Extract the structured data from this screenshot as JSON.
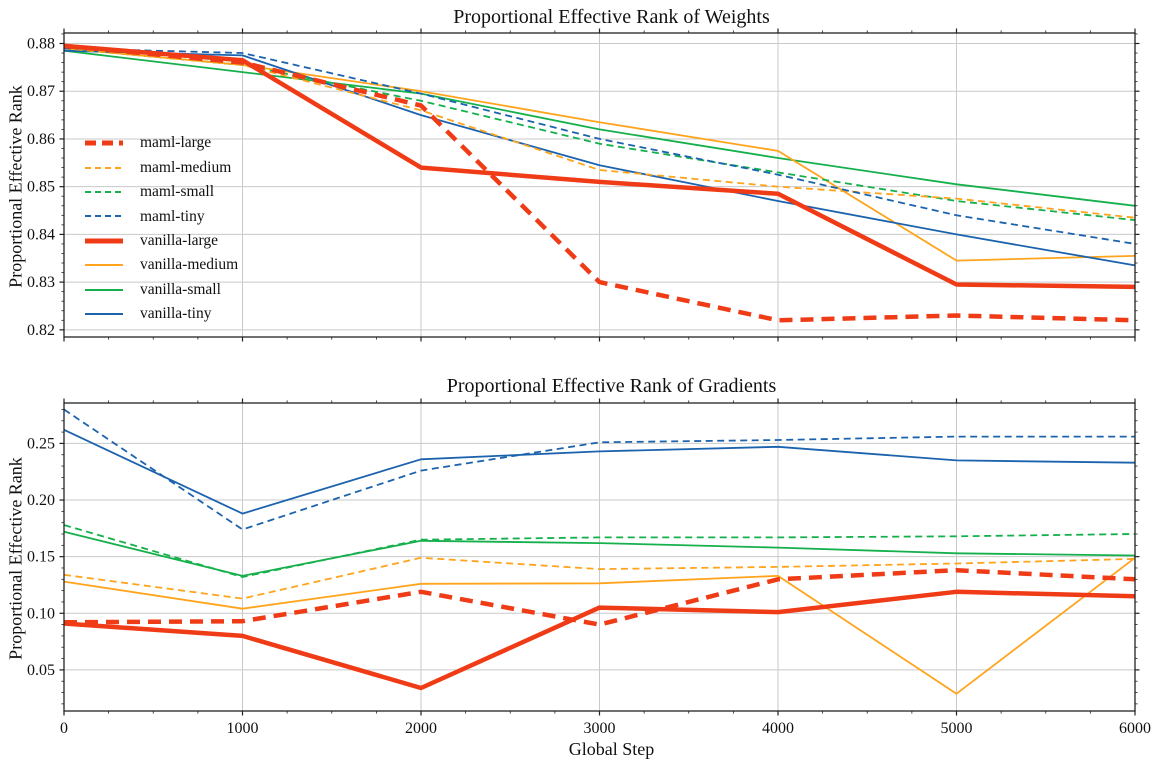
{
  "figure": {
    "background": "#ffffff"
  },
  "palette": {
    "red": "#f03b17",
    "orange": "#ffa41c",
    "green": "#15b04c",
    "blue": "#1c63ae",
    "grid": "#c9c9c9",
    "spine": "#222222",
    "text": "#111111"
  },
  "legend": {
    "items": [
      "maml-large",
      "maml-medium",
      "maml-small",
      "maml-tiny",
      "vanilla-large",
      "vanilla-medium",
      "vanilla-small",
      "vanilla-tiny"
    ]
  },
  "chart_data": [
    {
      "type": "line",
      "title": "Proportional Effective Rank of Weights",
      "xlabel": "",
      "ylabel": "Proportional Effective Rank",
      "x": [
        0,
        1000,
        2000,
        3000,
        4000,
        5000,
        6000
      ],
      "xlim": [
        0,
        6000
      ],
      "ylim": [
        0.8185,
        0.8822
      ],
      "xticks": [
        0,
        1000,
        2000,
        3000,
        4000,
        5000,
        6000
      ],
      "xtick_labels": [],
      "yticks": [
        0.82,
        0.83,
        0.84,
        0.85,
        0.86,
        0.87,
        0.88
      ],
      "ytick_labels": [
        "0.82",
        "0.83",
        "0.84",
        "0.85",
        "0.86",
        "0.87",
        "0.88"
      ],
      "xminor_step": 250,
      "yminor_step": 0.002,
      "grid": true,
      "legend_position": "upper-left-inside",
      "series": [
        {
          "name": "maml-large",
          "color": "#f03b17",
          "style": "dashed",
          "width": 4.5,
          "values": [
            0.8795,
            0.876,
            0.867,
            0.83,
            0.822,
            0.823,
            0.822
          ]
        },
        {
          "name": "maml-medium",
          "color": "#ffa41c",
          "style": "dashed",
          "width": 1.8,
          "values": [
            0.879,
            0.8755,
            0.866,
            0.8535,
            0.85,
            0.8475,
            0.8435
          ]
        },
        {
          "name": "maml-small",
          "color": "#15b04c",
          "style": "dashed",
          "width": 1.8,
          "values": [
            0.879,
            0.8755,
            0.868,
            0.859,
            0.853,
            0.847,
            0.843
          ]
        },
        {
          "name": "maml-tiny",
          "color": "#1c63ae",
          "style": "dashed",
          "width": 1.8,
          "values": [
            0.879,
            0.878,
            0.8695,
            0.86,
            0.8525,
            0.844,
            0.838
          ]
        },
        {
          "name": "vanilla-large",
          "color": "#f03b17",
          "style": "solid",
          "width": 4.5,
          "values": [
            0.8795,
            0.8765,
            0.854,
            0.851,
            0.8485,
            0.8295,
            0.829
          ]
        },
        {
          "name": "vanilla-medium",
          "color": "#ffa41c",
          "style": "solid",
          "width": 1.8,
          "values": [
            0.879,
            0.8755,
            0.87,
            0.8635,
            0.8575,
            0.8345,
            0.8355
          ]
        },
        {
          "name": "vanilla-small",
          "color": "#15b04c",
          "style": "solid",
          "width": 1.8,
          "values": [
            0.8785,
            0.874,
            0.8695,
            0.862,
            0.856,
            0.8505,
            0.846
          ]
        },
        {
          "name": "vanilla-tiny",
          "color": "#1c63ae",
          "style": "solid",
          "width": 1.8,
          "values": [
            0.8785,
            0.8775,
            0.865,
            0.8545,
            0.847,
            0.84,
            0.8335
          ]
        }
      ]
    },
    {
      "type": "line",
      "title": "Proportional Effective Rank of Gradients",
      "xlabel": "Global Step",
      "ylabel": "Proportional Effective Rank",
      "x": [
        0,
        1000,
        2000,
        3000,
        4000,
        5000,
        6000
      ],
      "xlim": [
        0,
        6000
      ],
      "ylim": [
        0.0137,
        0.2857
      ],
      "xticks": [
        0,
        1000,
        2000,
        3000,
        4000,
        5000,
        6000
      ],
      "xtick_labels": [
        "0",
        "1000",
        "2000",
        "3000",
        "4000",
        "5000",
        "6000"
      ],
      "yticks": [
        0.05,
        0.1,
        0.15,
        0.2,
        0.25
      ],
      "ytick_labels": [
        "0.05",
        "0.10",
        "0.15",
        "0.20",
        "0.25"
      ],
      "xminor_step": 250,
      "yminor_step": 0.01,
      "grid": true,
      "legend_position": "none",
      "series": [
        {
          "name": "maml-large",
          "color": "#f03b17",
          "style": "dashed",
          "width": 4.5,
          "values": [
            0.092,
            0.093,
            0.119,
            0.09,
            0.13,
            0.138,
            0.13
          ]
        },
        {
          "name": "maml-medium",
          "color": "#ffa41c",
          "style": "dashed",
          "width": 1.8,
          "values": [
            0.134,
            0.113,
            0.149,
            0.139,
            0.141,
            0.144,
            0.148
          ]
        },
        {
          "name": "maml-small",
          "color": "#15b04c",
          "style": "dashed",
          "width": 1.8,
          "values": [
            0.178,
            0.132,
            0.165,
            0.167,
            0.167,
            0.168,
            0.17
          ]
        },
        {
          "name": "maml-tiny",
          "color": "#1c63ae",
          "style": "dashed",
          "width": 1.8,
          "values": [
            0.28,
            0.174,
            0.226,
            0.251,
            0.253,
            0.256,
            0.256
          ]
        },
        {
          "name": "vanilla-large",
          "color": "#f03b17",
          "style": "solid",
          "width": 4.5,
          "values": [
            0.091,
            0.08,
            0.034,
            0.105,
            0.101,
            0.119,
            0.115
          ]
        },
        {
          "name": "vanilla-medium",
          "color": "#ffa41c",
          "style": "solid",
          "width": 1.8,
          "values": [
            0.128,
            0.104,
            0.126,
            0.1265,
            0.133,
            0.029,
            0.149
          ]
        },
        {
          "name": "vanilla-small",
          "color": "#15b04c",
          "style": "solid",
          "width": 1.8,
          "values": [
            0.172,
            0.133,
            0.164,
            0.162,
            0.158,
            0.153,
            0.151
          ]
        },
        {
          "name": "vanilla-tiny",
          "color": "#1c63ae",
          "style": "solid",
          "width": 1.8,
          "values": [
            0.262,
            0.188,
            0.236,
            0.243,
            0.247,
            0.235,
            0.233
          ]
        }
      ]
    }
  ]
}
